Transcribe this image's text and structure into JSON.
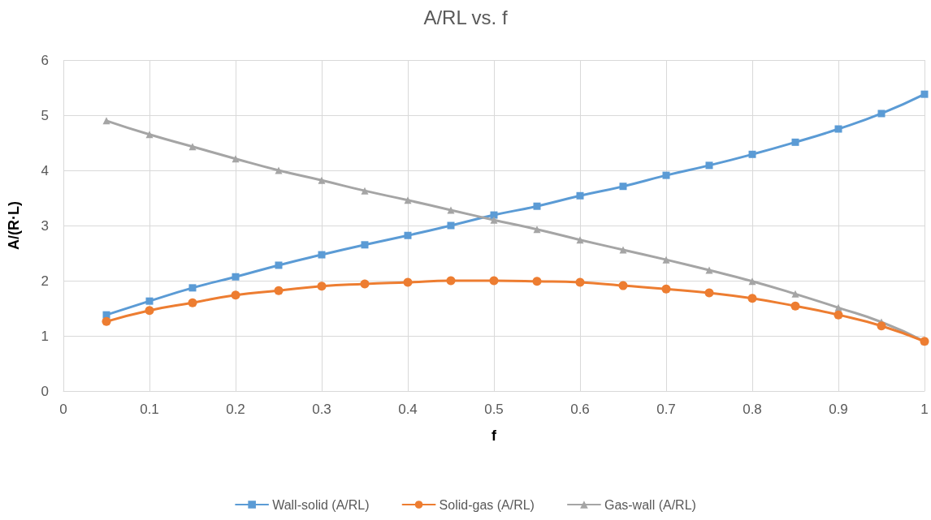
{
  "chart_data": {
    "type": "line",
    "title": "A/RL vs. f",
    "xlabel": "f",
    "ylabel": "A/(R·L)",
    "x": [
      0.05,
      0.1,
      0.15,
      0.2,
      0.25,
      0.3,
      0.35,
      0.4,
      0.45,
      0.5,
      0.55,
      0.6,
      0.65,
      0.7,
      0.75,
      0.8,
      0.85,
      0.9,
      0.95,
      1.0
    ],
    "series": [
      {
        "name": "Wall-solid (A/RL)",
        "color": "#5b9bd5",
        "marker": "square",
        "values": [
          1.38,
          1.63,
          1.87,
          2.07,
          2.28,
          2.47,
          2.65,
          2.82,
          3.0,
          3.19,
          3.35,
          3.54,
          3.71,
          3.91,
          4.09,
          4.29,
          4.51,
          4.75,
          5.03,
          5.38
        ]
      },
      {
        "name": "Solid-gas (A/RL)",
        "color": "#ed7d31",
        "marker": "circle",
        "values": [
          1.26,
          1.46,
          1.6,
          1.74,
          1.82,
          1.9,
          1.94,
          1.97,
          2.0,
          2.0,
          1.99,
          1.97,
          1.91,
          1.85,
          1.78,
          1.68,
          1.54,
          1.38,
          1.18,
          0.9
        ]
      },
      {
        "name": "Gas-wall (A/RL)",
        "color": "#a5a5a5",
        "marker": "triangle",
        "values": [
          4.9,
          4.65,
          4.43,
          4.21,
          4.0,
          3.82,
          3.63,
          3.46,
          3.28,
          3.1,
          2.93,
          2.74,
          2.56,
          2.38,
          2.19,
          1.99,
          1.76,
          1.51,
          1.25,
          0.9
        ]
      }
    ],
    "xlim": [
      0,
      1
    ],
    "xticks": [
      0,
      0.1,
      0.2,
      0.3,
      0.4,
      0.5,
      0.6,
      0.7,
      0.8,
      0.9,
      1
    ],
    "ylim": [
      0,
      6
    ],
    "yticks": [
      0,
      1,
      2,
      3,
      4,
      5,
      6
    ],
    "grid": true,
    "legend": "bottom",
    "line_style": "solid"
  }
}
